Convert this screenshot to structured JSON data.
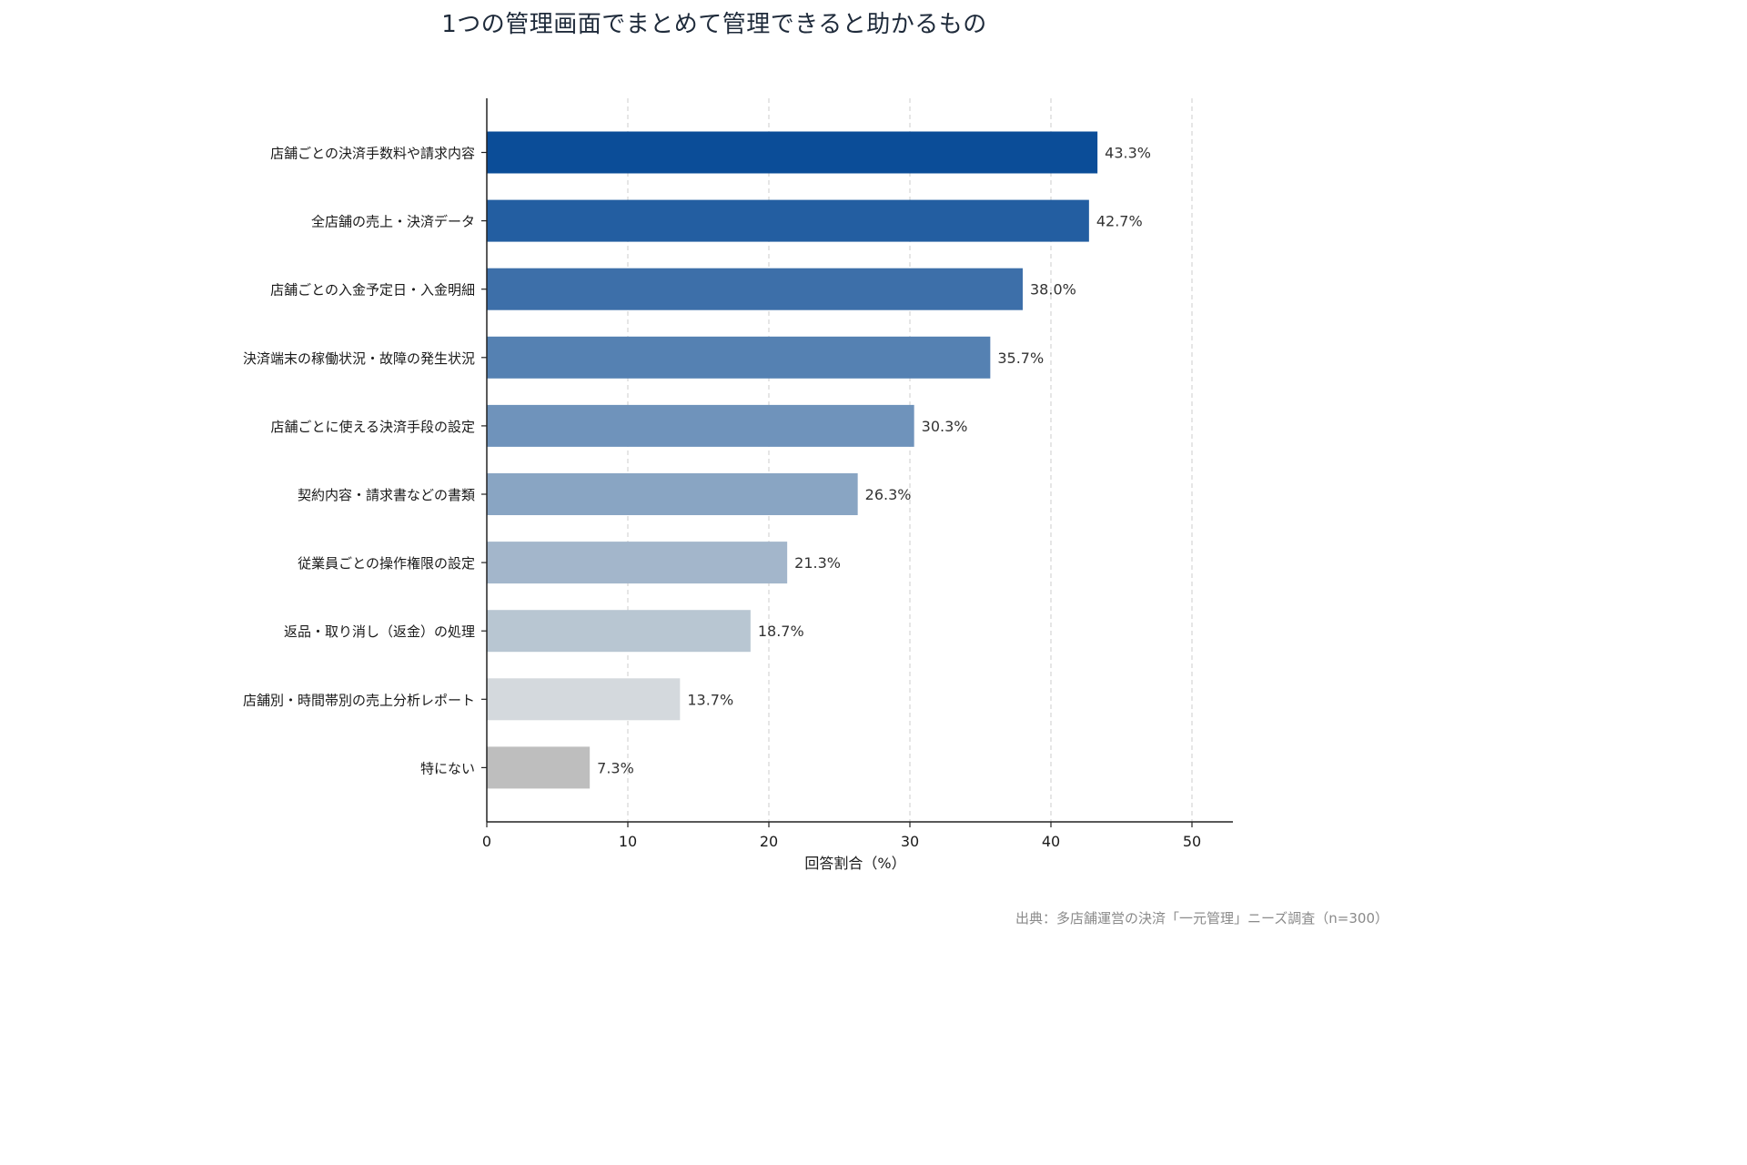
{
  "chart_data": {
    "type": "bar",
    "orientation": "horizontal",
    "title": "1つの管理画面でまとめて管理できると助かるもの",
    "xlabel": "回答割合（%）",
    "ylabel": "",
    "xlim": [
      0,
      53
    ],
    "xticks": [
      0,
      10,
      20,
      30,
      40,
      50
    ],
    "grid": "vertical-dashed",
    "categories": [
      "店舗ごとの決済手数料や請求内容",
      "全店舗の売上・決済データ",
      "店舗ごとの入金予定日・入金明細",
      "決済端末の稼働状況・故障の発生状況",
      "店舗ごとに使える決済手段の設定",
      "契約内容・請求書などの書類",
      "従業員ごとの操作権限の設定",
      "返品・取り消し（返金）の処理",
      "店舗別・時間帯別の売上分析レポート",
      "特にない"
    ],
    "values": [
      43.3,
      42.7,
      38.0,
      35.7,
      30.3,
      26.3,
      21.3,
      18.7,
      13.7,
      7.3
    ],
    "value_labels": [
      "43.3%",
      "42.7%",
      "38.0%",
      "35.7%",
      "30.3%",
      "26.3%",
      "21.3%",
      "18.7%",
      "13.7%",
      "7.3%"
    ],
    "colors": [
      "#0b4d98",
      "#235ea1",
      "#3d6fa9",
      "#5581b2",
      "#6f93bb",
      "#89a5c3",
      "#a3b6cb",
      "#b8c6d2",
      "#d4d9dd",
      "#bebebe"
    ]
  },
  "source_note": "出典：多店舗運営の決済「一元管理」ニーズ調査（n=300）"
}
